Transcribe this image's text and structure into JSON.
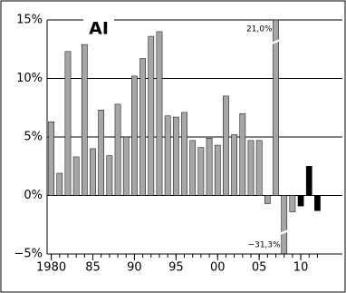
{
  "chart_data": {
    "type": "bar",
    "title": "AI",
    "x": [
      1980,
      1981,
      1982,
      1983,
      1984,
      1985,
      1986,
      1987,
      1988,
      1989,
      1990,
      1991,
      1992,
      1993,
      1994,
      1995,
      1996,
      1997,
      1998,
      1999,
      2000,
      2001,
      2002,
      2003,
      2004,
      2005,
      2006,
      2007,
      2008,
      2009,
      2010,
      2011,
      2012
    ],
    "values": [
      6.3,
      1.9,
      12.3,
      3.3,
      12.9,
      4.0,
      7.3,
      3.4,
      7.8,
      5.0,
      10.2,
      11.7,
      13.6,
      14.0,
      6.8,
      6.7,
      7.1,
      4.7,
      4.1,
      4.9,
      4.3,
      8.5,
      5.2,
      7.0,
      4.7,
      4.7,
      -0.7,
      21.0,
      -31.3,
      -1.4,
      -0.9,
      2.5,
      -1.3
    ],
    "value_labels": [
      null,
      null,
      null,
      null,
      null,
      null,
      null,
      null,
      null,
      null,
      null,
      null,
      null,
      null,
      null,
      null,
      null,
      null,
      null,
      null,
      null,
      null,
      null,
      null,
      null,
      null,
      null,
      "21,0%",
      "−31,3%",
      null,
      null,
      null,
      null
    ],
    "colors": [
      "#a6a6a6",
      "#a6a6a6",
      "#a6a6a6",
      "#a6a6a6",
      "#a6a6a6",
      "#a6a6a6",
      "#a6a6a6",
      "#a6a6a6",
      "#a6a6a6",
      "#a6a6a6",
      "#a6a6a6",
      "#a6a6a6",
      "#a6a6a6",
      "#a6a6a6",
      "#a6a6a6",
      "#a6a6a6",
      "#a6a6a6",
      "#a6a6a6",
      "#a6a6a6",
      "#a6a6a6",
      "#a6a6a6",
      "#a6a6a6",
      "#a6a6a6",
      "#a6a6a6",
      "#a6a6a6",
      "#a6a6a6",
      "#a6a6a6",
      "#a6a6a6",
      "#a6a6a6",
      "#a6a6a6",
      "#000000",
      "#000000",
      "#000000"
    ],
    "xlim": [
      1979.5,
      2015
    ],
    "xticks": [
      1980,
      {
        "value": 1985,
        "label": "85"
      },
      {
        "value": 1990,
        "label": "90"
      },
      {
        "value": 1995,
        "label": "95"
      },
      {
        "value": 2000,
        "label": "00"
      },
      {
        "value": 2005,
        "label": "05"
      },
      {
        "value": 2010,
        "label": "10"
      }
    ],
    "ylim": [
      -5,
      15
    ],
    "yticks": [
      {
        "value": -5,
        "label": "−5%"
      },
      {
        "value": 0,
        "label": "0%"
      },
      {
        "value": 5,
        "label": "5%"
      },
      {
        "value": 10,
        "label": "10%"
      },
      {
        "value": 15,
        "label": "15%"
      }
    ],
    "grid": true
  }
}
